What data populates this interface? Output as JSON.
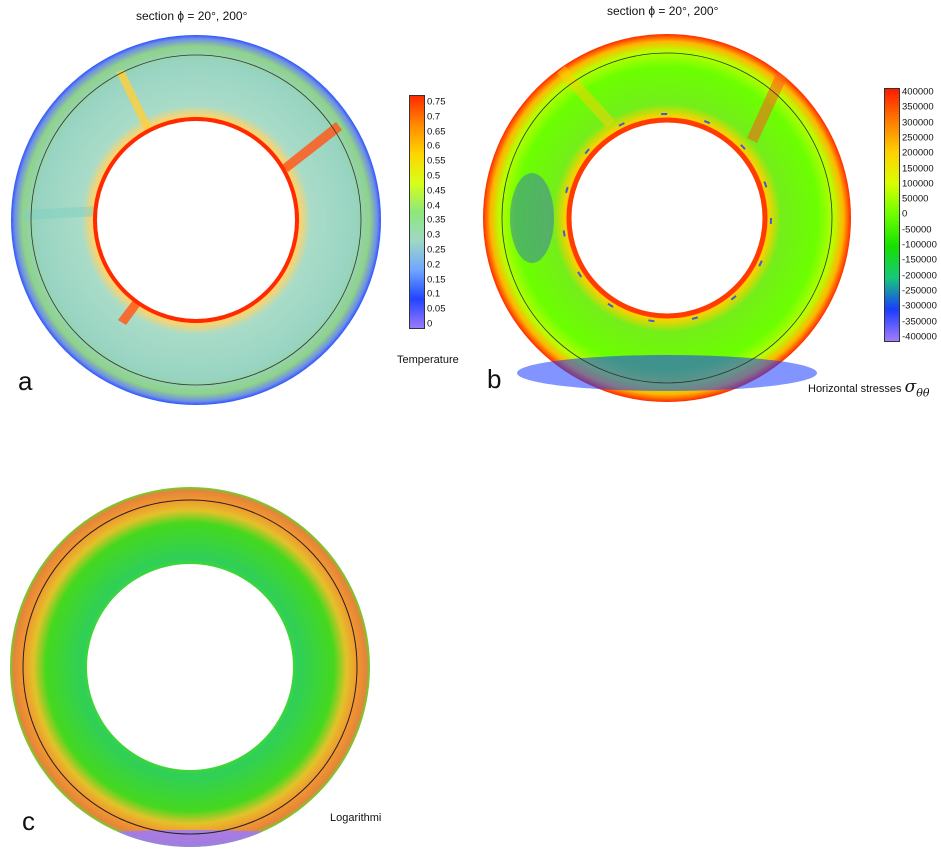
{
  "panels": {
    "a": {
      "letter": "a",
      "title": "section ϕ = 20°, 200°",
      "colorbar_title": "Temperature",
      "ticks": [
        "0.75",
        "0.7",
        "0.65",
        "0.6",
        "0.55",
        "0.5",
        "0.45",
        "0.4",
        "0.35",
        "0.3",
        "0.25",
        "0.2",
        "0.15",
        "0.1",
        "0.05",
        "0"
      ],
      "colormap": [
        "#ff2a00",
        "#ff8a00",
        "#ffd500",
        "#d6ff1a",
        "#8de87a",
        "#9fd7c6",
        "#6fa7ff",
        "#2244ff",
        "#9b79ff"
      ]
    },
    "b": {
      "letter": "b",
      "title": "section ϕ = 20°, 200°",
      "colorbar_title": "Horizontal stresses",
      "colorbar_symbol": "σ",
      "colorbar_symbol_sub": "θθ",
      "ticks": [
        "400000",
        "350000",
        "300000",
        "250000",
        "200000",
        "150000",
        "100000",
        "50000",
        "0",
        "-50000",
        "-100000",
        "-150000",
        "-200000",
        "-250000",
        "-300000",
        "-350000",
        "-400000"
      ],
      "colormap": [
        "#ff1a00",
        "#ff7a00",
        "#ffd000",
        "#d8ff00",
        "#6bff00",
        "#15e000",
        "#16c87a",
        "#1a3cff",
        "#a27cff"
      ]
    },
    "c": {
      "letter": "c",
      "colorbar_title": "Logarithmi"
    }
  }
}
